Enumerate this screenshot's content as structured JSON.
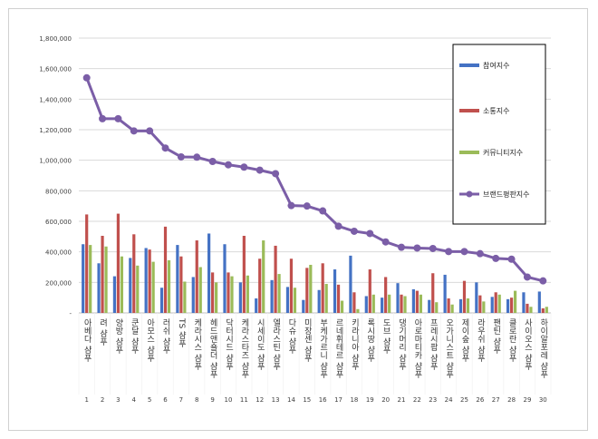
{
  "chart_data": {
    "type": "bar+line",
    "title": "",
    "xlabel": "",
    "ylabel": "",
    "ylim": [
      0,
      1800000
    ],
    "yticks": [
      0,
      200000,
      400000,
      600000,
      800000,
      1000000,
      1200000,
      1400000,
      1600000,
      1800000
    ],
    "ytick_labels": [
      "-",
      "200,000",
      "400,000",
      "600,000",
      "800,000",
      "1,000,000",
      "1,200,000",
      "1,400,000",
      "1,600,000",
      "1,800,000"
    ],
    "grid": true,
    "legend_position": "top-right",
    "ranks": [
      "1",
      "2",
      "3",
      "4",
      "5",
      "6",
      "7",
      "8",
      "9",
      "10",
      "11",
      "12",
      "13",
      "14",
      "15",
      "16",
      "17",
      "18",
      "19",
      "20",
      "21",
      "22",
      "23",
      "24",
      "25",
      "26",
      "27",
      "28",
      "29",
      "30"
    ],
    "categories": [
      "아베다 샴푸",
      "려 샴푸",
      "양방 샴푸",
      "쿤달 샴푸",
      "아모스 샴푸",
      "러쉬 샴푸",
      "TS 샴푸",
      "케라시스 샴푸",
      "헤드앤숄더 샴푸",
      "닥터시드 샴푸",
      "케라스타즈 샴푸",
      "시세이도 샴푸",
      "엘라스틴 샴푸",
      "다슈 샴푸",
      "미장센 샴푸",
      "부케가르니 샴푸",
      "르네휘테르 샴푸",
      "키라니아 샴푸",
      "록시땅 샴푸",
      "도브 샴푸",
      "댕기머리 샴푸",
      "아로마티카 샴푸",
      "프레시팝 샴푸",
      "오가니스트 샴푸",
      "제이숲 샴푸",
      "라우쉬 샴푸",
      "팬틴 샴푸",
      "클로란 샴푸",
      "사이오스 샴푸",
      "하이알포레 샴푸"
    ],
    "series": [
      {
        "name": "참여지수",
        "color": "#4472c4",
        "values": [
          450000,
          325000,
          240000,
          360000,
          425000,
          165000,
          445000,
          235000,
          520000,
          450000,
          200000,
          95000,
          215000,
          170000,
          85000,
          150000,
          285000,
          375000,
          110000,
          100000,
          195000,
          155000,
          85000,
          250000,
          90000,
          200000,
          105000,
          90000,
          135000,
          140000
        ]
      },
      {
        "name": "소통지수",
        "color": "#c0504d",
        "values": [
          645000,
          505000,
          650000,
          515000,
          415000,
          565000,
          370000,
          475000,
          265000,
          265000,
          505000,
          355000,
          440000,
          355000,
          295000,
          325000,
          185000,
          135000,
          285000,
          235000,
          120000,
          145000,
          260000,
          95000,
          210000,
          115000,
          135000,
          100000,
          60000,
          30000
        ]
      },
      {
        "name": "커뮤니티지수",
        "color": "#9bbb59",
        "values": [
          445000,
          435000,
          370000,
          310000,
          335000,
          345000,
          205000,
          300000,
          200000,
          240000,
          245000,
          475000,
          255000,
          165000,
          315000,
          190000,
          80000,
          25000,
          120000,
          120000,
          110000,
          120000,
          70000,
          55000,
          95000,
          75000,
          120000,
          145000,
          40000,
          40000
        ]
      },
      {
        "name": "브랜드평판지수",
        "color": "#7b5ea7",
        "type": "line",
        "values": [
          1540000,
          1272000,
          1272000,
          1192000,
          1192000,
          1080000,
          1022000,
          1020000,
          992000,
          970000,
          955000,
          935000,
          912000,
          703000,
          700000,
          668000,
          568000,
          535000,
          520000,
          465000,
          430000,
          425000,
          422000,
          402000,
          402000,
          388000,
          357000,
          352000,
          235000,
          210000
        ]
      }
    ]
  }
}
